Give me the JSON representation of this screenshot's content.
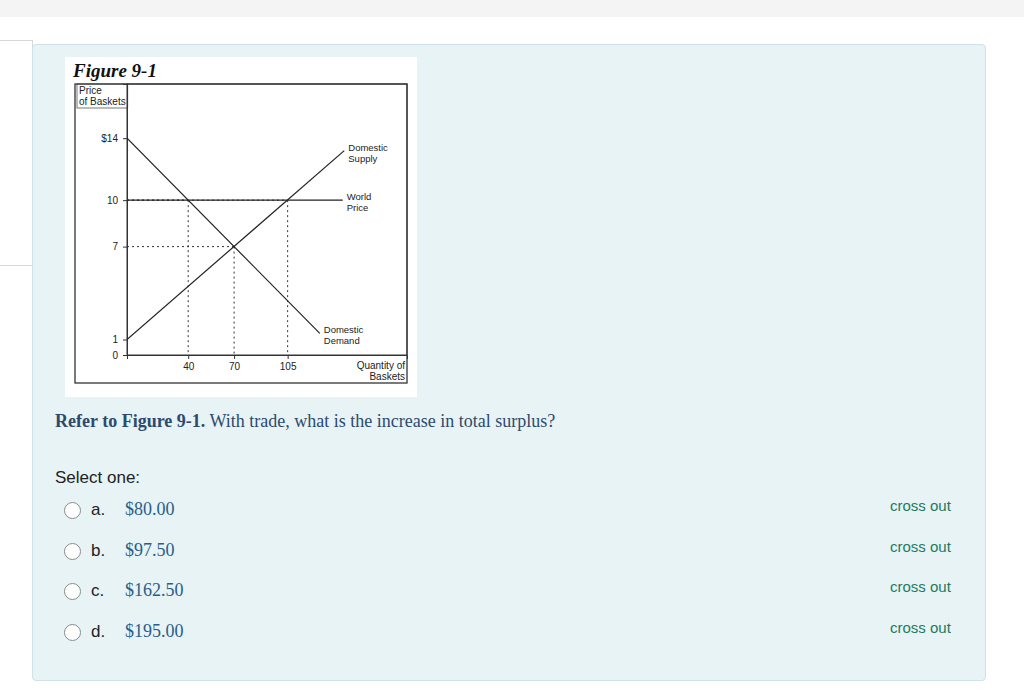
{
  "chart_data": {
    "type": "line",
    "title": "Figure 9-1",
    "y_label": "Price of Baskets",
    "x_label": "Quantity of Baskets",
    "xlim": [
      0,
      183
    ],
    "xticks": [
      40,
      70,
      105
    ],
    "ylim": [
      0,
      17.5
    ],
    "yticks": [
      0,
      1,
      7,
      10,
      {
        "value": 14,
        "label": "$14"
      }
    ],
    "grid": false,
    "series": [
      {
        "name": "Domestic Supply",
        "color": "#222222",
        "line_style": "solid",
        "x": [
          0,
          142
        ],
        "values": [
          1,
          13.2
        ]
      },
      {
        "name": "World Price",
        "color": "#222222",
        "line_style": "solid",
        "x": [
          0,
          141
        ],
        "values": [
          10,
          10
        ]
      },
      {
        "name": "Domestic Demand",
        "color": "#222222",
        "line_style": "solid",
        "x": [
          0,
          126
        ],
        "values": [
          14,
          1.4
        ]
      }
    ],
    "guides": [
      {
        "x": 40,
        "y": 10
      },
      {
        "x": 70,
        "y": 7
      },
      {
        "x": 105,
        "y": 10
      }
    ]
  },
  "question": {
    "prompt_bold": "Refer to Figure 9-1.",
    "prompt": "With trade, what is the increase in total surplus?",
    "instruction": "Select one:",
    "options": [
      {
        "letter": "a.",
        "text": "$80.00"
      },
      {
        "letter": "b.",
        "text": "$97.50"
      },
      {
        "letter": "c.",
        "text": "$162.50"
      },
      {
        "letter": "d.",
        "text": "$195.00"
      }
    ],
    "cross_out": "cross out"
  }
}
